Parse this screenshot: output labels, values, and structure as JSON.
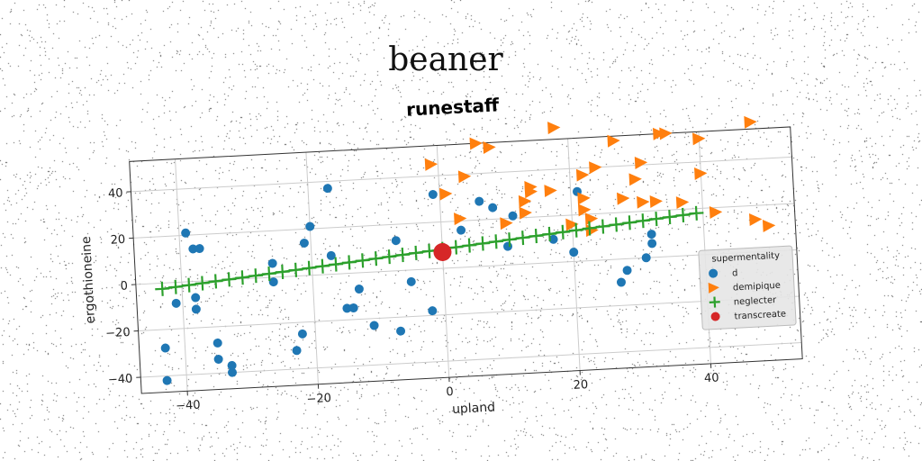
{
  "figure": {
    "suptitle": "beaner"
  },
  "colors": {
    "d": "#1f77b4",
    "demipique": "#ff7f0e",
    "neglecter": "#2ca02c",
    "transcreate": "#d62728",
    "grid": "#cccccc"
  },
  "chart_data": {
    "type": "scatter",
    "title": "runestaff",
    "xlabel": "upland",
    "ylabel": "ergothioneine",
    "xlim": [
      -47,
      54
    ],
    "ylim": [
      -47,
      53
    ],
    "xticks": [
      -40,
      -20,
      0,
      20,
      40
    ],
    "yticks": [
      -40,
      -20,
      0,
      20,
      40
    ],
    "grid": true,
    "legend": {
      "title": "supermentality",
      "position": "lower-right"
    },
    "series": [
      {
        "name": "d",
        "marker": "circle",
        "points": [
          [
            -43,
            -28
          ],
          [
            -43,
            -42
          ],
          [
            -41,
            -9
          ],
          [
            -39,
            21
          ],
          [
            -38,
            -7
          ],
          [
            -38,
            -12
          ],
          [
            -38,
            14
          ],
          [
            -37,
            14
          ],
          [
            -35,
            -27
          ],
          [
            -35,
            -34
          ],
          [
            -33,
            -40
          ],
          [
            -33,
            -37
          ],
          [
            -26,
            6
          ],
          [
            -26,
            -2
          ],
          [
            -23,
            -32
          ],
          [
            -22,
            -25
          ],
          [
            -21,
            14
          ],
          [
            -20,
            21
          ],
          [
            -17,
            37
          ],
          [
            -17,
            8
          ],
          [
            -15,
            -15
          ],
          [
            -14,
            -15
          ],
          [
            -13,
            -7
          ],
          [
            -11,
            -23
          ],
          [
            -7,
            -26
          ],
          [
            -7,
            13
          ],
          [
            -5,
            -5
          ],
          [
            -2,
            -18
          ],
          [
            -1,
            32
          ],
          [
            3,
            16
          ],
          [
            6,
            28
          ],
          [
            8,
            25
          ],
          [
            10,
            8
          ],
          [
            11,
            21
          ],
          [
            17,
            10
          ],
          [
            20,
            4
          ],
          [
            21,
            30
          ],
          [
            27,
            -10
          ],
          [
            28,
            -5
          ],
          [
            31,
            0
          ],
          [
            32,
            6
          ],
          [
            32,
            10
          ]
        ]
      },
      {
        "name": "demipique",
        "marker": "triangle-right",
        "points": [
          [
            -1,
            45
          ],
          [
            1,
            32
          ],
          [
            3,
            21
          ],
          [
            4,
            39
          ],
          [
            6,
            53
          ],
          [
            8,
            51
          ],
          [
            10,
            18
          ],
          [
            13,
            22
          ],
          [
            13,
            27
          ],
          [
            14,
            33
          ],
          [
            14,
            31
          ],
          [
            17,
            31
          ],
          [
            18,
            58
          ],
          [
            20,
            16
          ],
          [
            22,
            37
          ],
          [
            22,
            22
          ],
          [
            22,
            27
          ],
          [
            23,
            18
          ],
          [
            23,
            13
          ],
          [
            24,
            40
          ],
          [
            27,
            51
          ],
          [
            28,
            26
          ],
          [
            30,
            34
          ],
          [
            31,
            24
          ],
          [
            31,
            41
          ],
          [
            33,
            24
          ],
          [
            34,
            53
          ],
          [
            35,
            53
          ],
          [
            37,
            23
          ],
          [
            40,
            50
          ],
          [
            40,
            35
          ],
          [
            42,
            18
          ],
          [
            48,
            56
          ],
          [
            48,
            14
          ],
          [
            50,
            11
          ]
        ]
      },
      {
        "name": "neglecter",
        "marker": "plus",
        "line": [
          [
            -43,
            -2.5
          ],
          [
            39,
            18
          ]
        ]
      },
      {
        "name": "transcreate",
        "marker": "circle",
        "points": [
          [
            0,
            7
          ]
        ]
      }
    ]
  }
}
